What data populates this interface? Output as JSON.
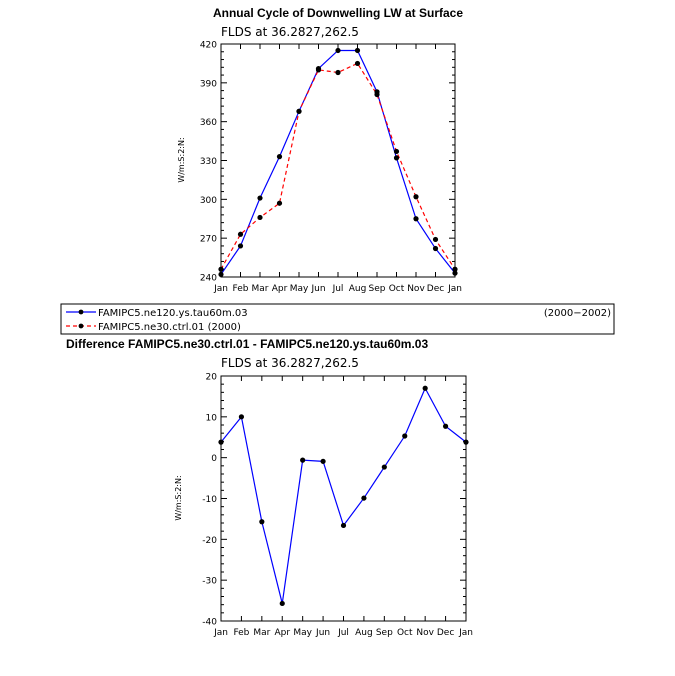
{
  "chart_data": [
    {
      "type": "line",
      "title": "Annual Cycle of Downwelling LW at Surface",
      "subtitle": "FLDS at 36.2827,262.5",
      "ylabel": "W/m:S:2:N:",
      "categories": [
        "Jan",
        "Feb",
        "Mar",
        "Apr",
        "May",
        "Jun",
        "Jul",
        "Aug",
        "Sep",
        "Oct",
        "Nov",
        "Dec",
        "Jan"
      ],
      "ylim": [
        240,
        420
      ],
      "yticks": [
        240,
        270,
        300,
        330,
        360,
        390,
        420
      ],
      "series": [
        {
          "name": "FAMIPC5.ne120.ys.tau60m.03",
          "period": "(2000−2002)",
          "color": "#0000ff",
          "dash": "solid",
          "values": [
            242,
            264,
            301,
            333,
            368,
            401,
            415,
            415,
            383,
            332,
            285,
            262,
            243
          ]
        },
        {
          "name": "FAMIPC5.ne30.ctrl.01 (2000)",
          "color": "#ff0000",
          "dash": "dashed",
          "values": [
            246,
            273,
            286,
            297,
            368,
            400,
            398,
            405,
            381,
            337,
            302,
            269,
            246
          ]
        }
      ]
    },
    {
      "type": "line",
      "title": "Difference FAMIPC5.ne30.ctrl.01 - FAMIPC5.ne120.ys.tau60m.03",
      "subtitle": "FLDS at 36.2827,262.5",
      "ylabel": "W/m:S:2:N:",
      "categories": [
        "Jan",
        "Feb",
        "Mar",
        "Apr",
        "May",
        "Jun",
        "Jul",
        "Aug",
        "Sep",
        "Oct",
        "Nov",
        "Dec",
        "Jan"
      ],
      "ylim": [
        -40,
        20
      ],
      "yticks": [
        -40,
        -30,
        -20,
        -10,
        0,
        10,
        20
      ],
      "series": [
        {
          "color": "#0000ff",
          "dash": "solid",
          "values": [
            3.8,
            10,
            -15.7,
            -35.7,
            -0.6,
            -0.9,
            -16.6,
            -9.9,
            -2.3,
            5.3,
            17,
            7.7,
            3.8
          ]
        }
      ]
    }
  ]
}
